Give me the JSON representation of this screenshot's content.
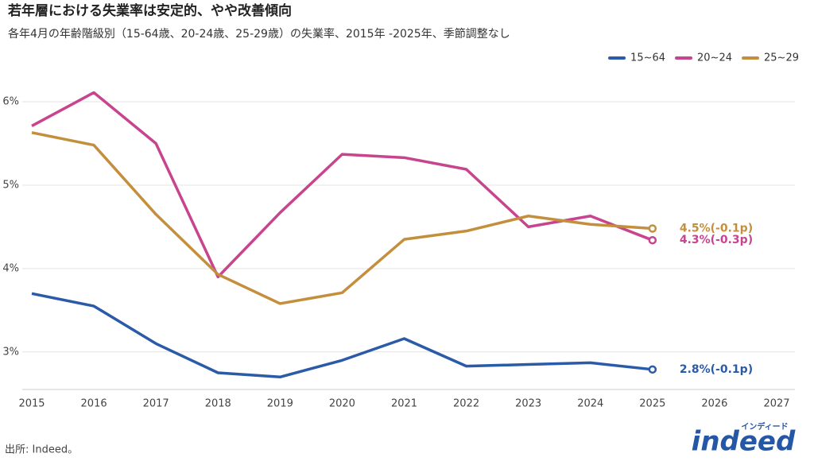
{
  "chart_data": {
    "type": "line",
    "title": "若年層における失業率は安定的、やや改善傾向",
    "subtitle": "各年4月の年齢階級別（15-64歳、20-24歳、25-29歳）の失業率、2015年 -2025年、季節調整なし",
    "x": [
      2015,
      2016,
      2017,
      2018,
      2019,
      2020,
      2021,
      2022,
      2023,
      2024,
      2025
    ],
    "series": [
      {
        "name": "15~64",
        "color": "#2b5aa8",
        "values": [
          3.7,
          3.55,
          3.1,
          2.75,
          2.7,
          2.9,
          3.16,
          2.83,
          2.85,
          2.87,
          2.79
        ],
        "end_label": "2.8%(-0.1p)"
      },
      {
        "name": "20~24",
        "color": "#c8448e",
        "values": [
          5.71,
          6.11,
          5.5,
          3.9,
          4.67,
          5.37,
          5.33,
          5.19,
          4.5,
          4.63,
          4.34
        ],
        "end_label": "4.3%(-0.3p)"
      },
      {
        "name": "25~29",
        "color": "#c48f3c",
        "values": [
          5.63,
          5.48,
          4.65,
          3.93,
          3.58,
          3.71,
          4.35,
          4.45,
          4.63,
          4.53,
          4.48
        ],
        "end_label": "4.5%(-0.1p)"
      }
    ],
    "xlim": [
      2015,
      2027
    ],
    "xticks": [
      2015,
      2016,
      2017,
      2018,
      2019,
      2020,
      2021,
      2022,
      2023,
      2024,
      2025,
      2026,
      2027
    ],
    "ylim": [
      2.55,
      6.41
    ],
    "yticks": [
      {
        "value": 3,
        "label": "3%"
      },
      {
        "value": 4,
        "label": "4%"
      },
      {
        "value": 5,
        "label": "5%"
      },
      {
        "value": 6,
        "label": "6%"
      }
    ],
    "grid": true,
    "legend": "top-right",
    "source": "出所: Indeed。",
    "logo": {
      "text": "indeed",
      "kana": "インディード"
    }
  }
}
